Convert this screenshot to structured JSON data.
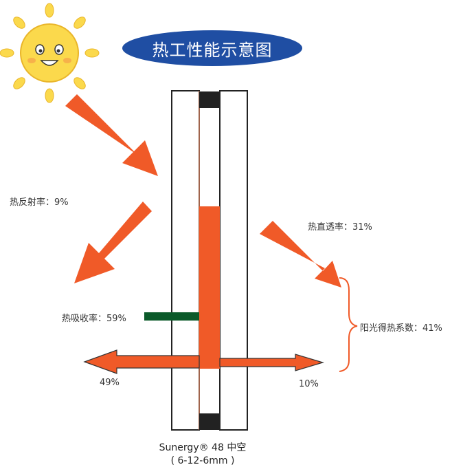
{
  "title": "热工性能示意图",
  "labels": {
    "reflectance": "热反射率：9%",
    "direct_transmittance": "热直透率：31%",
    "absorptance": "热吸收率：59%",
    "shgc": "阳光得热系数：41%",
    "outward": "49%",
    "inward": "10%"
  },
  "product": {
    "name": "Sunergy® 48 中空",
    "spec": "( 6-12-6mm )"
  },
  "colors": {
    "arrow": "#f05a28",
    "title_bg": "#1f4ea3",
    "absorption_bar": "#0b5a2a",
    "sun": "#fbd94c",
    "bracket": "#f05a28"
  },
  "icons": [
    "sun-icon"
  ]
}
